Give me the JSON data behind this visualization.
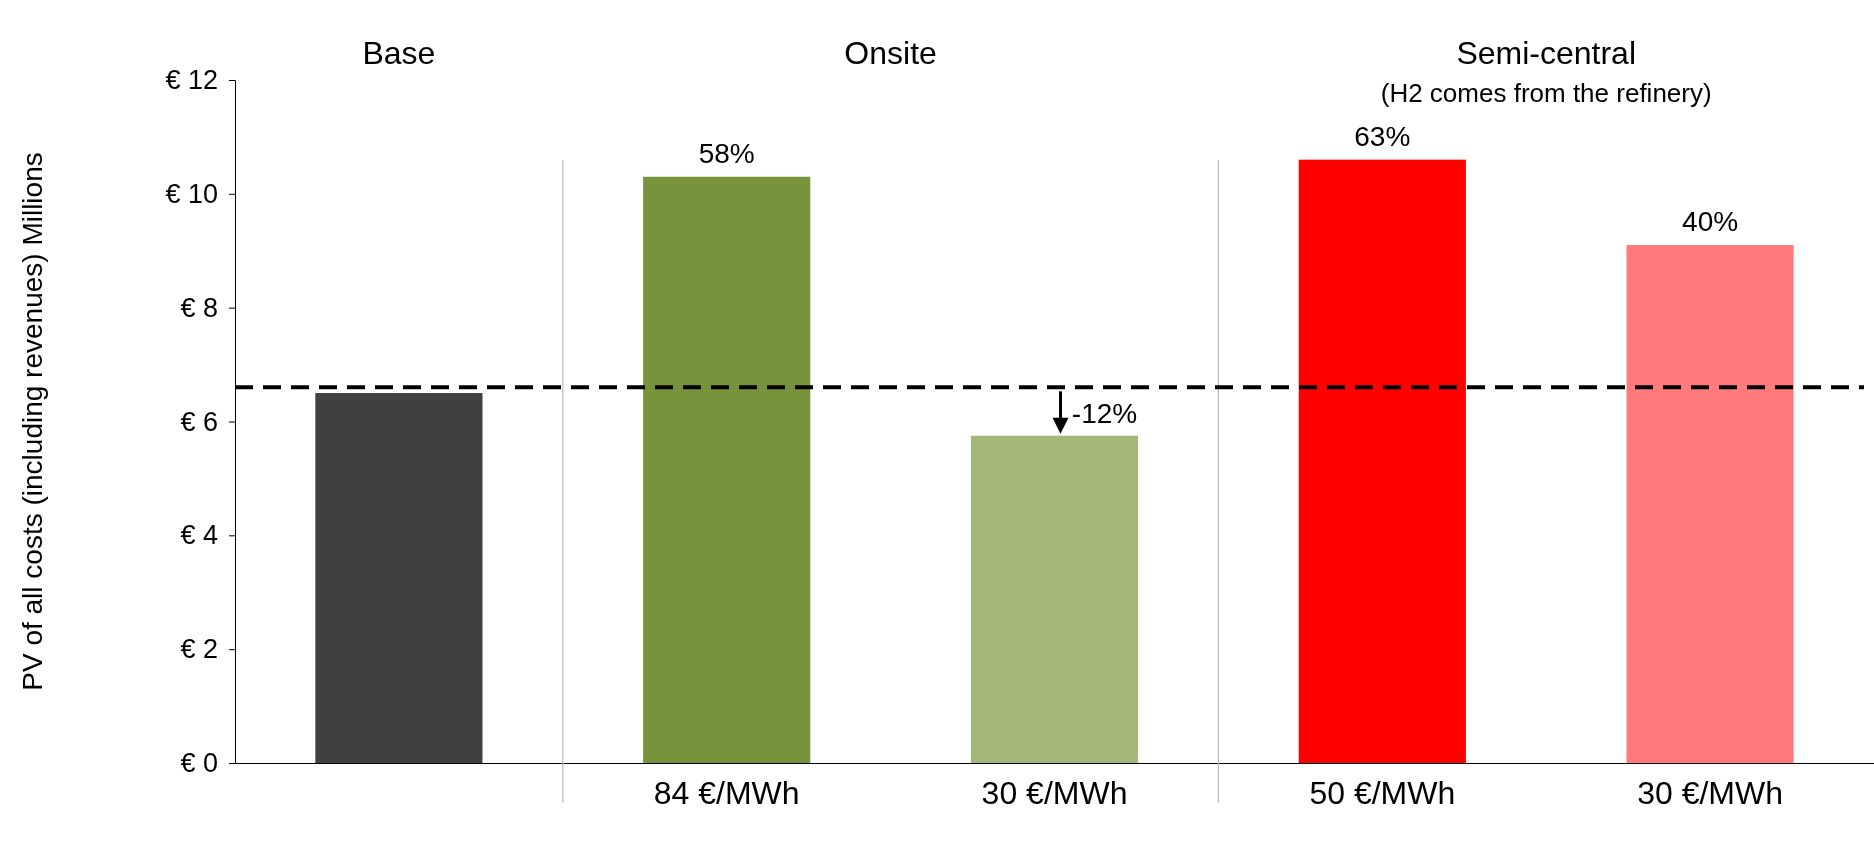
{
  "chart_data": {
    "type": "bar",
    "ylabel": "PV of all costs (including revenues) Millions",
    "categories": [
      null,
      "84 €/MWh",
      "30 €/MWh",
      "50 €/MWh",
      "30 €/MWh"
    ],
    "values": [
      6.5,
      10.3,
      5.75,
      10.6,
      9.1
    ],
    "colors": [
      "#404040",
      "#77933c",
      "#a3b878",
      "#ff0000",
      "#ff7a7a"
    ],
    "ylim": [
      0,
      12
    ],
    "yticks": [
      {
        "value": 0,
        "label": "€ 0"
      },
      {
        "value": 2,
        "label": "€ 2"
      },
      {
        "value": 4,
        "label": "€ 4"
      },
      {
        "value": 6,
        "label": "€ 6"
      },
      {
        "value": 8,
        "label": "€ 8"
      },
      {
        "value": 10,
        "label": "€ 10"
      },
      {
        "value": 12,
        "label": "€ 12"
      }
    ],
    "ref_lines": [
      {
        "axis": "y",
        "value": 6.6,
        "color": "#000000",
        "line_style": "dashed"
      }
    ],
    "annotations": [
      "Base",
      "Onsite",
      "Semi-central",
      "(H2 comes from the refinery)",
      "58%",
      "-12%",
      "63%",
      "40%"
    ],
    "grid": false
  }
}
